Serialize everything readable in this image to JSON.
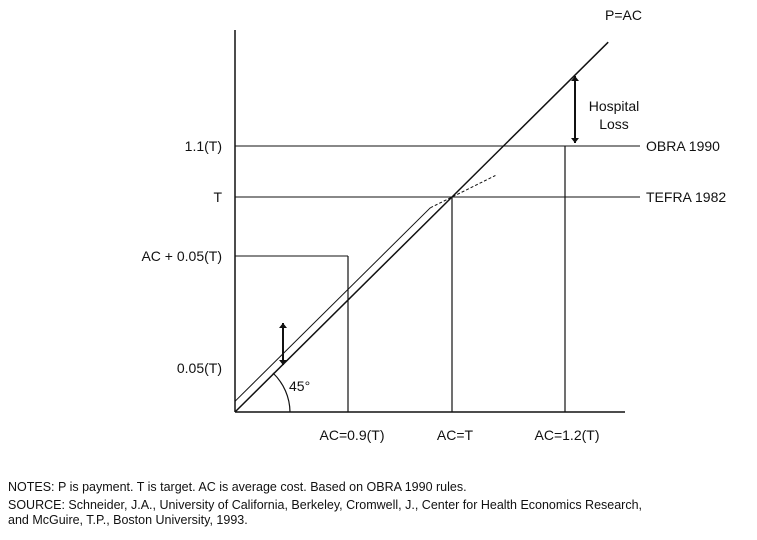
{
  "chart_data": {
    "type": "line",
    "title": "",
    "xlabel": "",
    "ylabel": "",
    "x_ticks": [
      {
        "value": 0.9,
        "label": "AC=0.9(T)"
      },
      {
        "value": 1.0,
        "label": "AC=T"
      },
      {
        "value": 1.2,
        "label": "AC=1.2(T)"
      }
    ],
    "y_ticks": [
      {
        "value": 0.05,
        "label": "0.05(T)"
      },
      {
        "value": 0.95,
        "label": "AC + 0.05(T)"
      },
      {
        "value": 1.0,
        "label": "T"
      },
      {
        "value": 1.1,
        "label": "1.1(T)"
      }
    ],
    "xlim": [
      0,
      1.72
    ],
    "ylim": [
      0,
      1.72
    ],
    "series": [
      {
        "name": "P=AC",
        "x": [
          0,
          1.72
        ],
        "y": [
          0,
          1.72
        ]
      },
      {
        "name": "",
        "x": [
          0,
          0.9
        ],
        "y": [
          0.05,
          0.95
        ]
      },
      {
        "name": "",
        "x": [
          0.9,
          1.2
        ],
        "y": [
          0.95,
          1.1
        ]
      }
    ],
    "reference_lines": [
      {
        "label": "OBRA 1990",
        "y": 1.1
      },
      {
        "label": "TEFRA 1982",
        "y": 1.0
      }
    ],
    "annotations": {
      "angle": "45°",
      "hospital_loss_line1": "Hospital",
      "hospital_loss_line2": "Loss"
    }
  },
  "notes": "NOTES: P is payment. T is target. AC is average cost. Based on OBRA 1990 rules.",
  "source_line1": "SOURCE: Schneider, J.A., University of California, Berkeley, Cromwell, J., Center for Health Economics Research,",
  "source_line2": "and McGuire, T.P., Boston University, 1993."
}
